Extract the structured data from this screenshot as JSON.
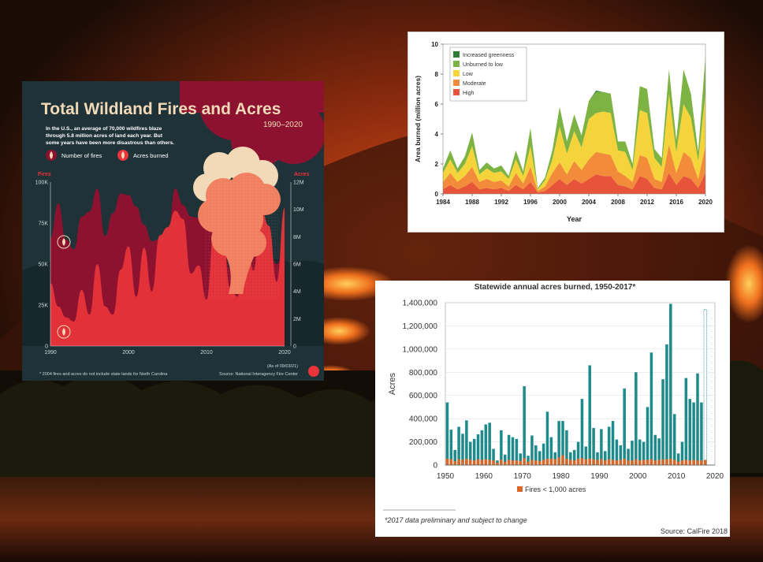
{
  "infographic": {
    "title": "Total Wildland Fires and Acres",
    "subtitle": "1990–2020",
    "description_lines": [
      "In the U.S., an average of 70,000 wildfires blaze",
      "through 5.8 million acres of land each year. But",
      "some years have been more disastrous than others."
    ],
    "legend_fires": "Number of fires",
    "legend_acres": "Acres burned",
    "left_axis_title": "Fires",
    "right_axis_title": "Acres",
    "footnote": "* 2004 fires and acres do not include state lands for North Carolina",
    "as_of": "(As of 09/03/21)",
    "source": "Source:  National Interagency Fire Center",
    "colors": {
      "background": "#1e3238",
      "fires": "#8c1230",
      "acres": "#e8343a",
      "smoke": "#f08060",
      "title": "#f2d9b8"
    }
  },
  "severity_chart": {
    "legend": [
      "Increased greenness",
      "Unburned to low",
      "Low",
      "Moderate",
      "High"
    ],
    "colors": [
      "#2e7d32",
      "#7cb342",
      "#f5d33a",
      "#f28c3a",
      "#e8543a"
    ]
  },
  "calfire_chart": {
    "title": "Statewide annual acres burned, 1950-2017*",
    "footnote": "*2017 data preliminary and subject to change",
    "source": "Source: CalFire 2018",
    "colors": {
      "total": "#1f8a8c",
      "small": "#d9672a"
    }
  },
  "chart_data": [
    {
      "type": "area",
      "title": "Total Wildland Fires and Acres",
      "x": [
        1990,
        1991,
        1992,
        1993,
        1994,
        1995,
        1996,
        1997,
        1998,
        1999,
        2000,
        2001,
        2002,
        2003,
        2004,
        2005,
        2006,
        2007,
        2008,
        2009,
        2010,
        2011,
        2012,
        2013,
        2014,
        2015,
        2016,
        2017,
        2018,
        2019,
        2020
      ],
      "xticks": [
        1990,
        2000,
        2010,
        2020
      ],
      "series": [
        {
          "name": "Number of fires",
          "axis": "left",
          "values": [
            66000,
            87000,
            65000,
            59000,
            79000,
            82000,
            96000,
            67000,
            81000,
            93000,
            92000,
            85000,
            74000,
            64000,
            65000,
            67000,
            96000,
            86000,
            79000,
            78000,
            72000,
            74000,
            68000,
            47000,
            64000,
            68000,
            68000,
            72000,
            58000,
            50000,
            59000
          ]
        },
        {
          "name": "Acres burned",
          "axis": "right",
          "values": [
            4600000,
            2900000,
            2100000,
            1800000,
            4100000,
            2300000,
            6000000,
            2900000,
            2300000,
            5600000,
            7300000,
            3600000,
            7200000,
            4000000,
            8100000,
            8700000,
            9900000,
            9300000,
            5300000,
            5900000,
            3400000,
            8700000,
            9300000,
            4300000,
            3600000,
            10100000,
            5500000,
            10000000,
            8800000,
            4700000,
            10100000
          ]
        }
      ],
      "yticks_left": [
        "0",
        "25K",
        "50K",
        "75K",
        "100K"
      ],
      "yticks_right": [
        "0",
        "2M",
        "4M",
        "6M",
        "8M",
        "10M",
        "12M"
      ],
      "ylim_left": [
        0,
        100000
      ],
      "ylim_right": [
        0,
        12000000
      ]
    },
    {
      "type": "area",
      "x": [
        1984,
        1985,
        1986,
        1987,
        1988,
        1989,
        1990,
        1991,
        1992,
        1993,
        1994,
        1995,
        1996,
        1997,
        1998,
        1999,
        2000,
        2001,
        2002,
        2003,
        2004,
        2005,
        2006,
        2007,
        2008,
        2009,
        2010,
        2011,
        2012,
        2013,
        2014,
        2015,
        2016,
        2017,
        2018,
        2019,
        2020
      ],
      "xticks": [
        1984,
        1988,
        1992,
        1996,
        2000,
        2004,
        2008,
        2012,
        2016,
        2020
      ],
      "xlabel": "Year",
      "ylabel": "Area burned (million acres)",
      "ylim": [
        0,
        10
      ],
      "yticks": [
        0,
        2,
        4,
        6,
        8,
        10
      ],
      "stacked": true,
      "series": [
        {
          "name": "High",
          "values": [
            0.3,
            0.6,
            0.3,
            0.5,
            0.8,
            0.3,
            0.4,
            0.3,
            0.4,
            0.2,
            0.6,
            0.3,
            0.8,
            0.1,
            0.2,
            0.6,
            1.0,
            0.6,
            1.0,
            0.7,
            1.0,
            1.3,
            1.2,
            1.2,
            0.6,
            0.5,
            0.3,
            1.2,
            1.0,
            0.4,
            0.3,
            1.4,
            0.6,
            1.2,
            1.0,
            0.4,
            1.4
          ]
        },
        {
          "name": "Moderate",
          "values": [
            0.5,
            0.8,
            0.5,
            0.7,
            1.0,
            0.5,
            0.6,
            0.5,
            0.5,
            0.3,
            0.8,
            0.4,
            1.0,
            0.1,
            0.3,
            0.8,
            1.1,
            0.7,
            1.2,
            0.9,
            1.3,
            1.5,
            1.5,
            1.4,
            0.9,
            0.7,
            0.5,
            1.4,
            1.4,
            0.6,
            0.5,
            1.9,
            0.8,
            1.6,
            1.4,
            0.6,
            1.8
          ]
        },
        {
          "name": "Low",
          "values": [
            0.6,
            0.9,
            0.6,
            0.8,
            1.4,
            0.5,
            0.7,
            0.6,
            0.6,
            0.5,
            0.9,
            0.5,
            1.4,
            0.1,
            0.4,
            0.9,
            2.4,
            1.4,
            2.0,
            1.5,
            2.7,
            2.6,
            2.8,
            2.8,
            1.4,
            1.6,
            0.8,
            3.0,
            3.0,
            1.4,
            1.0,
            3.4,
            1.4,
            3.2,
            2.7,
            1.2,
            3.5
          ]
        },
        {
          "name": "Unburned to low",
          "values": [
            0.3,
            0.6,
            0.3,
            0.5,
            0.9,
            0.3,
            0.4,
            0.3,
            0.4,
            0.2,
            0.6,
            0.3,
            1.2,
            0.1,
            0.2,
            0.6,
            1.3,
            0.8,
            1.1,
            0.8,
            1.2,
            1.4,
            1.3,
            1.3,
            0.6,
            0.7,
            0.4,
            1.6,
            1.6,
            0.6,
            0.6,
            1.6,
            0.8,
            2.3,
            1.6,
            0.6,
            2.5
          ]
        },
        {
          "name": "Increased greenness",
          "values": [
            0,
            0,
            0,
            0,
            0,
            0,
            0,
            0,
            0,
            0,
            0,
            0,
            0,
            0,
            0,
            0,
            0,
            0,
            0,
            0,
            0,
            0.1,
            0,
            0,
            0,
            0,
            0,
            0,
            0,
            0,
            0,
            0,
            0,
            0,
            0,
            0,
            0
          ]
        }
      ]
    },
    {
      "type": "bar",
      "title": "Statewide annual acres burned, 1950-2017*",
      "x": [
        1950,
        1951,
        1952,
        1953,
        1954,
        1955,
        1956,
        1957,
        1958,
        1959,
        1960,
        1961,
        1962,
        1963,
        1964,
        1965,
        1966,
        1967,
        1968,
        1969,
        1970,
        1971,
        1972,
        1973,
        1974,
        1975,
        1976,
        1977,
        1978,
        1979,
        1980,
        1981,
        1982,
        1983,
        1984,
        1985,
        1986,
        1987,
        1988,
        1989,
        1990,
        1991,
        1992,
        1993,
        1994,
        1995,
        1996,
        1997,
        1998,
        1999,
        2000,
        2001,
        2002,
        2003,
        2004,
        2005,
        2006,
        2007,
        2008,
        2009,
        2010,
        2011,
        2012,
        2013,
        2014,
        2015,
        2016,
        2017
      ],
      "xticks": [
        1950,
        1960,
        1970,
        1980,
        1990,
        2000,
        2010,
        2020
      ],
      "ylabel": "Acres",
      "ylim": [
        0,
        1400000
      ],
      "yticks": [
        "0",
        "200,000",
        "400,000",
        "600,000",
        "800,000",
        "1,000,000",
        "1,200,000",
        "1,400,000"
      ],
      "legend": [
        "Fires < 1,000 acres"
      ],
      "series": [
        {
          "name": "Total acres",
          "values": [
            540000,
            305000,
            130000,
            330000,
            270000,
            385000,
            200000,
            225000,
            265000,
            300000,
            350000,
            365000,
            140000,
            40000,
            300000,
            90000,
            260000,
            240000,
            225000,
            100000,
            680000,
            80000,
            255000,
            170000,
            120000,
            185000,
            460000,
            240000,
            110000,
            380000,
            380000,
            300000,
            110000,
            130000,
            200000,
            570000,
            160000,
            860000,
            320000,
            110000,
            310000,
            120000,
            330000,
            380000,
            220000,
            170000,
            660000,
            140000,
            210000,
            800000,
            220000,
            200000,
            500000,
            970000,
            260000,
            230000,
            740000,
            1040000,
            1390000,
            440000,
            100000,
            200000,
            750000,
            570000,
            540000,
            790000,
            540000,
            1340000
          ]
        },
        {
          "name": "Fires < 1,000 acres",
          "values": [
            55000,
            50000,
            35000,
            50000,
            45000,
            55000,
            45000,
            40000,
            50000,
            45000,
            50000,
            45000,
            40000,
            20000,
            45000,
            30000,
            45000,
            40000,
            40000,
            35000,
            60000,
            30000,
            45000,
            40000,
            35000,
            45000,
            55000,
            55000,
            50000,
            65000,
            85000,
            55000,
            45000,
            40000,
            55000,
            60000,
            50000,
            55000,
            50000,
            45000,
            50000,
            40000,
            50000,
            45000,
            40000,
            45000,
            55000,
            40000,
            40000,
            50000,
            40000,
            45000,
            45000,
            50000,
            40000,
            45000,
            50000,
            50000,
            55000,
            45000,
            30000,
            40000,
            45000,
            40000,
            45000,
            40000,
            40000,
            45000
          ]
        }
      ]
    }
  ]
}
